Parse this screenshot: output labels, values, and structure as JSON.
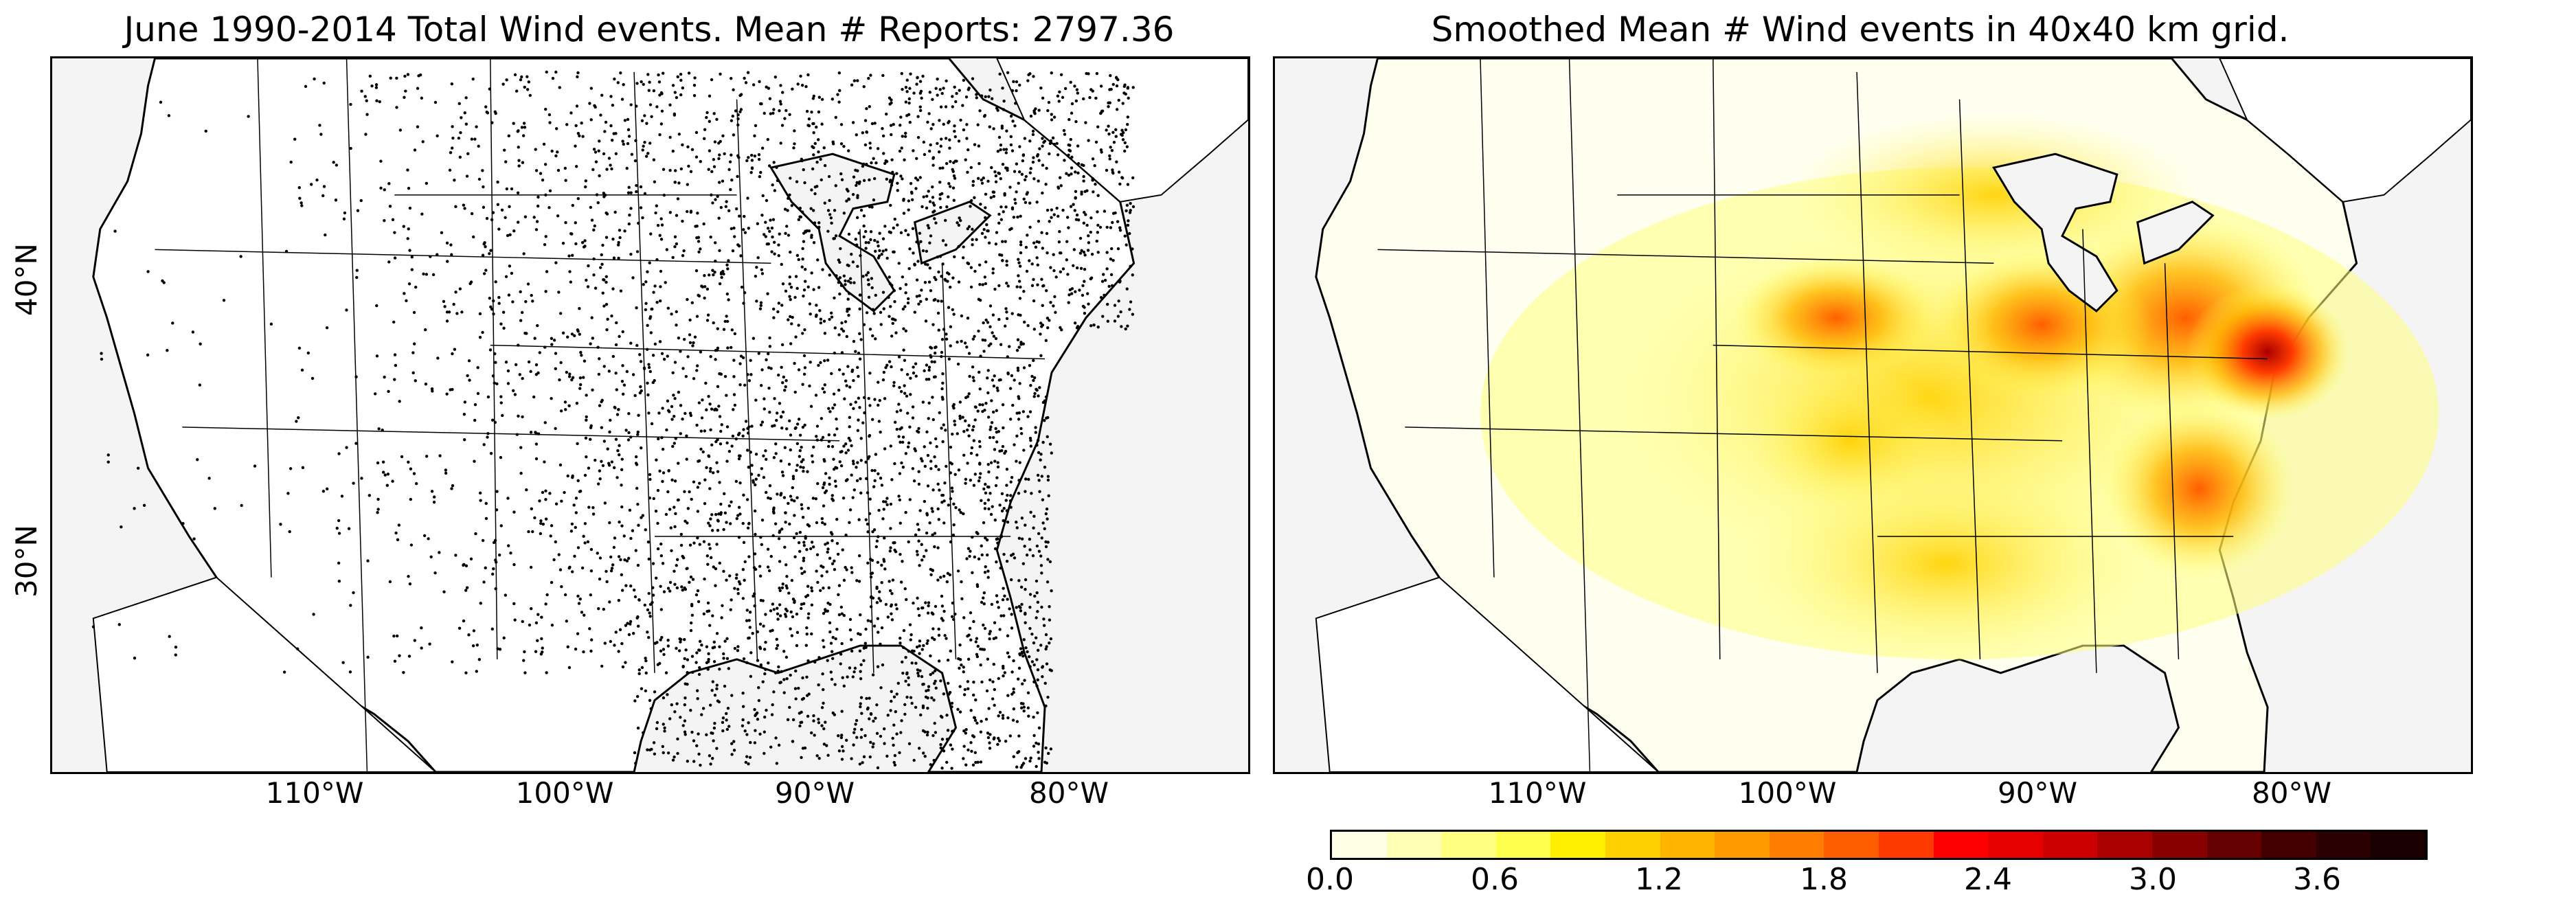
{
  "left_panel": {
    "title": "June 1990-2014 Total Wind events. Mean # Reports: 2797.36",
    "lon_labels": [
      "110°W",
      "100°W",
      "90°W",
      "80°W"
    ],
    "lat_labels": [
      "40°N",
      "30°N"
    ],
    "map_type": "point reports scatter",
    "point_color": "#000000"
  },
  "right_panel": {
    "title": "Smoothed Mean # Wind events in 40x40 km grid.",
    "lon_labels": [
      "110°W",
      "100°W",
      "90°W",
      "80°W"
    ],
    "map_type": "filled contour heatmap",
    "colorbar": {
      "tick_labels": [
        "0.0",
        "0.6",
        "1.2",
        "1.8",
        "2.4",
        "3.0",
        "3.6"
      ],
      "range": [
        0.0,
        4.0
      ],
      "colors": [
        "#ffffe6",
        "#ffffb3",
        "#ffff80",
        "#ffff4d",
        "#ffee00",
        "#ffd000",
        "#ffb400",
        "#ff9a00",
        "#ff7d00",
        "#ff5e00",
        "#ff3a00",
        "#ff0000",
        "#e80000",
        "#cc0000",
        "#aa0000",
        "#880000",
        "#660000",
        "#440000",
        "#2a0000",
        "#1a0000"
      ]
    }
  },
  "colors": {
    "land": "#ffffff",
    "ocean": "#f4f4f4",
    "border": "#000000"
  }
}
